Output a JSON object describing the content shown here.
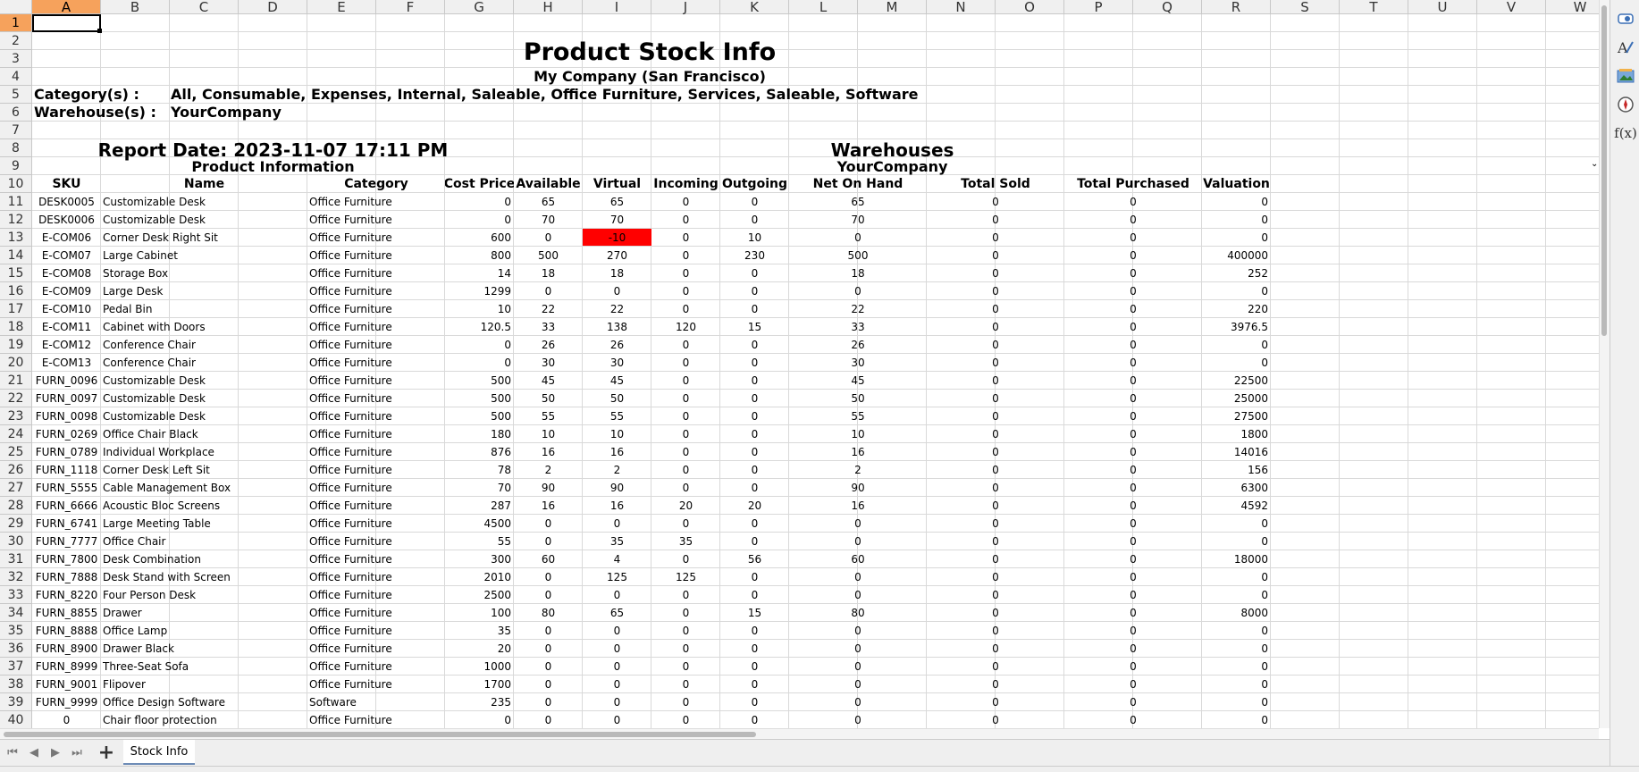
{
  "columns": [
    "A",
    "B",
    "C",
    "D",
    "E",
    "F",
    "G",
    "H",
    "I",
    "J",
    "K",
    "L",
    "M",
    "N",
    "O",
    "P",
    "Q",
    "R",
    "S",
    "T",
    "U",
    "V",
    "W"
  ],
  "selected_column": "A",
  "selected_row": "1",
  "header": {
    "title": "Product Stock Info",
    "company": "My Company (San Francisco)",
    "category_label": "Category(s) :",
    "category_value": "All, Consumable, Expenses, Internal, Saleable, Office Furniture, Services, Saleable, Software",
    "warehouse_label": "Warehouse(s) :",
    "warehouse_value": "YourCompany",
    "report_date": "Report Date: 2023-11-07 17:11 PM",
    "product_info": "Product Information",
    "warehouses": "Warehouses",
    "warehouse_name": "YourCompany"
  },
  "table_headers": [
    "SKU",
    "Name",
    "Category",
    "Cost Price",
    "Available",
    "Virtual",
    "Incoming",
    "Outgoing",
    "Net On Hand",
    "Total Sold",
    "Total Purchased",
    "Valuation"
  ],
  "rows": [
    [
      "DESK0005",
      "Customizable Desk",
      "Office Furniture",
      "0",
      "65",
      "65",
      "0",
      "0",
      "65",
      "0",
      "0",
      "0"
    ],
    [
      "DESK0006",
      "Customizable Desk",
      "Office Furniture",
      "0",
      "70",
      "70",
      "0",
      "0",
      "70",
      "0",
      "0",
      "0"
    ],
    [
      "E-COM06",
      "Corner Desk Right Sit",
      "Office Furniture",
      "600",
      "0",
      "-10",
      "0",
      "10",
      "0",
      "0",
      "0",
      "0"
    ],
    [
      "E-COM07",
      "Large Cabinet",
      "Office Furniture",
      "800",
      "500",
      "270",
      "0",
      "230",
      "500",
      "0",
      "0",
      "400000"
    ],
    [
      "E-COM08",
      "Storage Box",
      "Office Furniture",
      "14",
      "18",
      "18",
      "0",
      "0",
      "18",
      "0",
      "0",
      "252"
    ],
    [
      "E-COM09",
      "Large Desk",
      "Office Furniture",
      "1299",
      "0",
      "0",
      "0",
      "0",
      "0",
      "0",
      "0",
      "0"
    ],
    [
      "E-COM10",
      "Pedal Bin",
      "Office Furniture",
      "10",
      "22",
      "22",
      "0",
      "0",
      "22",
      "0",
      "0",
      "220"
    ],
    [
      "E-COM11",
      "Cabinet with Doors",
      "Office Furniture",
      "120.5",
      "33",
      "138",
      "120",
      "15",
      "33",
      "0",
      "0",
      "3976.5"
    ],
    [
      "E-COM12",
      "Conference Chair",
      "Office Furniture",
      "0",
      "26",
      "26",
      "0",
      "0",
      "26",
      "0",
      "0",
      "0"
    ],
    [
      "E-COM13",
      "Conference Chair",
      "Office Furniture",
      "0",
      "30",
      "30",
      "0",
      "0",
      "30",
      "0",
      "0",
      "0"
    ],
    [
      "FURN_0096",
      "Customizable Desk",
      "Office Furniture",
      "500",
      "45",
      "45",
      "0",
      "0",
      "45",
      "0",
      "0",
      "22500"
    ],
    [
      "FURN_0097",
      "Customizable Desk",
      "Office Furniture",
      "500",
      "50",
      "50",
      "0",
      "0",
      "50",
      "0",
      "0",
      "25000"
    ],
    [
      "FURN_0098",
      "Customizable Desk",
      "Office Furniture",
      "500",
      "55",
      "55",
      "0",
      "0",
      "55",
      "0",
      "0",
      "27500"
    ],
    [
      "FURN_0269",
      "Office Chair Black",
      "Office Furniture",
      "180",
      "10",
      "10",
      "0",
      "0",
      "10",
      "0",
      "0",
      "1800"
    ],
    [
      "FURN_0789",
      "Individual Workplace",
      "Office Furniture",
      "876",
      "16",
      "16",
      "0",
      "0",
      "16",
      "0",
      "0",
      "14016"
    ],
    [
      "FURN_1118",
      "Corner Desk Left Sit",
      "Office Furniture",
      "78",
      "2",
      "2",
      "0",
      "0",
      "2",
      "0",
      "0",
      "156"
    ],
    [
      "FURN_5555",
      "Cable Management Box",
      "Office Furniture",
      "70",
      "90",
      "90",
      "0",
      "0",
      "90",
      "0",
      "0",
      "6300"
    ],
    [
      "FURN_6666",
      "Acoustic Bloc Screens",
      "Office Furniture",
      "287",
      "16",
      "16",
      "20",
      "20",
      "16",
      "0",
      "0",
      "4592"
    ],
    [
      "FURN_6741",
      "Large Meeting Table",
      "Office Furniture",
      "4500",
      "0",
      "0",
      "0",
      "0",
      "0",
      "0",
      "0",
      "0"
    ],
    [
      "FURN_7777",
      "Office Chair",
      "Office Furniture",
      "55",
      "0",
      "35",
      "35",
      "0",
      "0",
      "0",
      "0",
      "0"
    ],
    [
      "FURN_7800",
      "Desk Combination",
      "Office Furniture",
      "300",
      "60",
      "4",
      "0",
      "56",
      "60",
      "0",
      "0",
      "18000"
    ],
    [
      "FURN_7888",
      "Desk Stand with Screen",
      "Office Furniture",
      "2010",
      "0",
      "125",
      "125",
      "0",
      "0",
      "0",
      "0",
      "0"
    ],
    [
      "FURN_8220",
      "Four Person Desk",
      "Office Furniture",
      "2500",
      "0",
      "0",
      "0",
      "0",
      "0",
      "0",
      "0",
      "0"
    ],
    [
      "FURN_8855",
      "Drawer",
      "Office Furniture",
      "100",
      "80",
      "65",
      "0",
      "15",
      "80",
      "0",
      "0",
      "8000"
    ],
    [
      "FURN_8888",
      "Office Lamp",
      "Office Furniture",
      "35",
      "0",
      "0",
      "0",
      "0",
      "0",
      "0",
      "0",
      "0"
    ],
    [
      "FURN_8900",
      "Drawer Black",
      "Office Furniture",
      "20",
      "0",
      "0",
      "0",
      "0",
      "0",
      "0",
      "0",
      "0"
    ],
    [
      "FURN_8999",
      "Three-Seat Sofa",
      "Office Furniture",
      "1000",
      "0",
      "0",
      "0",
      "0",
      "0",
      "0",
      "0",
      "0"
    ],
    [
      "FURN_9001",
      "Flipover",
      "Office Furniture",
      "1700",
      "0",
      "0",
      "0",
      "0",
      "0",
      "0",
      "0",
      "0"
    ],
    [
      "FURN_9999",
      "Office Design Software",
      "Software",
      "235",
      "0",
      "0",
      "0",
      "0",
      "0",
      "0",
      "0",
      "0"
    ],
    [
      "0",
      "Chair floor protection",
      "Office Furniture",
      "0",
      "0",
      "0",
      "0",
      "0",
      "0",
      "0",
      "0",
      "0"
    ]
  ],
  "negative_highlight_color": "#ff0000",
  "sheet_tab": "Stock Info",
  "sidebar_icons": [
    "properties-icon",
    "styles-icon",
    "gallery-icon",
    "navigator-icon",
    "functions-icon"
  ],
  "sidebar_functions_glyph": "f(x)"
}
